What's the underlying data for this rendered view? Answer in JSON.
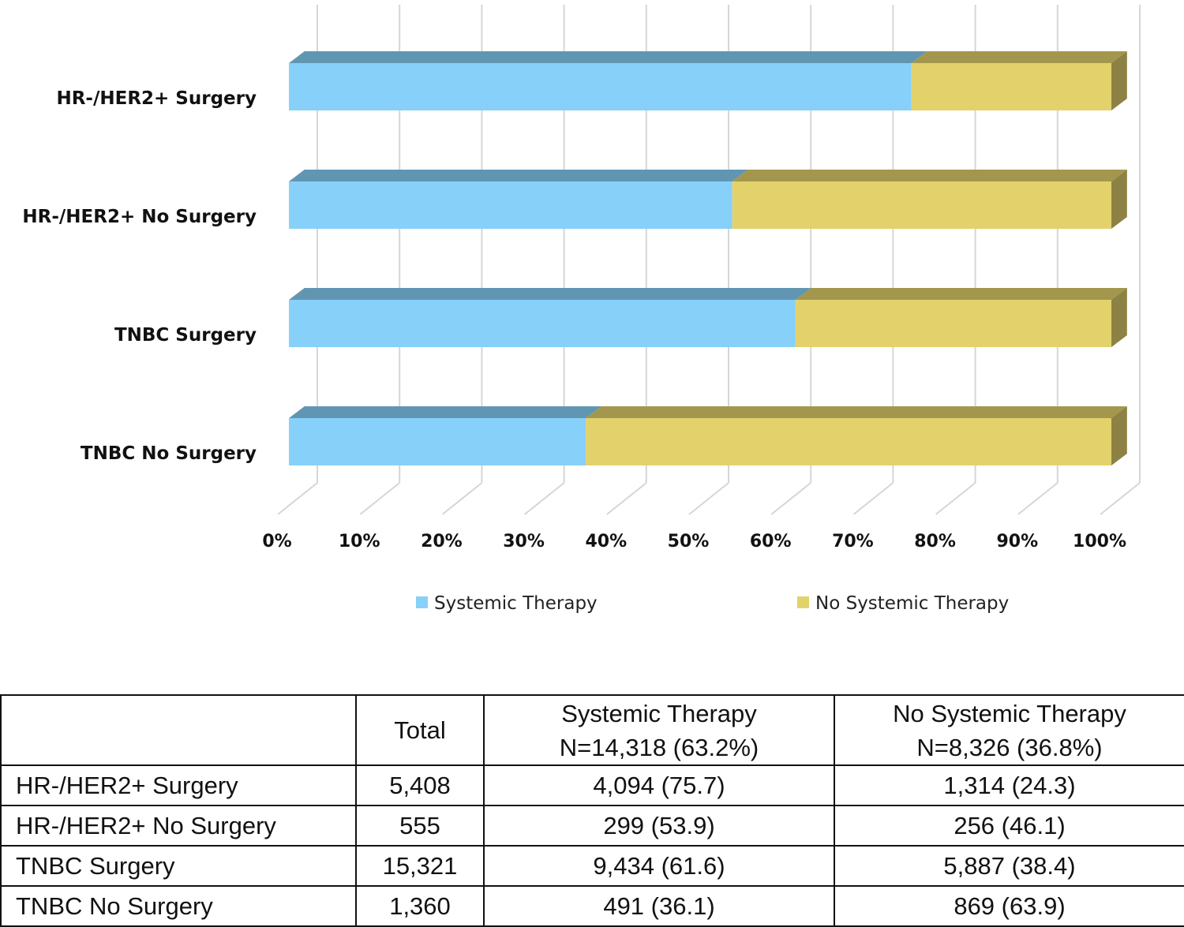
{
  "chart_data": {
    "type": "bar",
    "orientation": "horizontal",
    "stacked": "percent",
    "categories": [
      "HR-/HER2+ Surgery",
      "HR-/HER2+ No Surgery",
      "TNBC Surgery",
      "TNBC No Surgery"
    ],
    "series": [
      {
        "name": "Systemic Therapy",
        "values": [
          75.7,
          53.9,
          61.6,
          36.1
        ],
        "color": "#87d0f9"
      },
      {
        "name": "No Systemic Therapy",
        "values": [
          24.3,
          46.1,
          38.4,
          63.9
        ],
        "color": "#e3d26c"
      }
    ],
    "x_ticks": [
      "0%",
      "10%",
      "20%",
      "30%",
      "40%",
      "50%",
      "60%",
      "70%",
      "80%",
      "90%",
      "100%"
    ],
    "xlim": [
      0,
      100
    ],
    "grid": true,
    "legend_position": "bottom",
    "style": "3d"
  },
  "table": {
    "headers": [
      {
        "line1": "",
        "line2": ""
      },
      {
        "line1": "Total",
        "line2": ""
      },
      {
        "line1": "Systemic Therapy",
        "line2": "N=14,318 (63.2%)"
      },
      {
        "line1": "No Systemic Therapy",
        "line2": "N=8,326 (36.8%)"
      }
    ],
    "rows": [
      {
        "label": "HR-/HER2+ Surgery",
        "total": "5,408",
        "systemic": "4,094 (75.7)",
        "no_systemic": "1,314 (24.3)"
      },
      {
        "label": "HR-/HER2+ No Surgery",
        "total": "555",
        "systemic": "299 (53.9)",
        "no_systemic": "256 (46.1)"
      },
      {
        "label": "TNBC Surgery",
        "total": "15,321",
        "systemic": "9,434 (61.6)",
        "no_systemic": "5,887 (38.4)"
      },
      {
        "label": "TNBC No Surgery",
        "total": "1,360",
        "systemic": "491 (36.1)",
        "no_systemic": "869 (63.9)"
      }
    ]
  }
}
